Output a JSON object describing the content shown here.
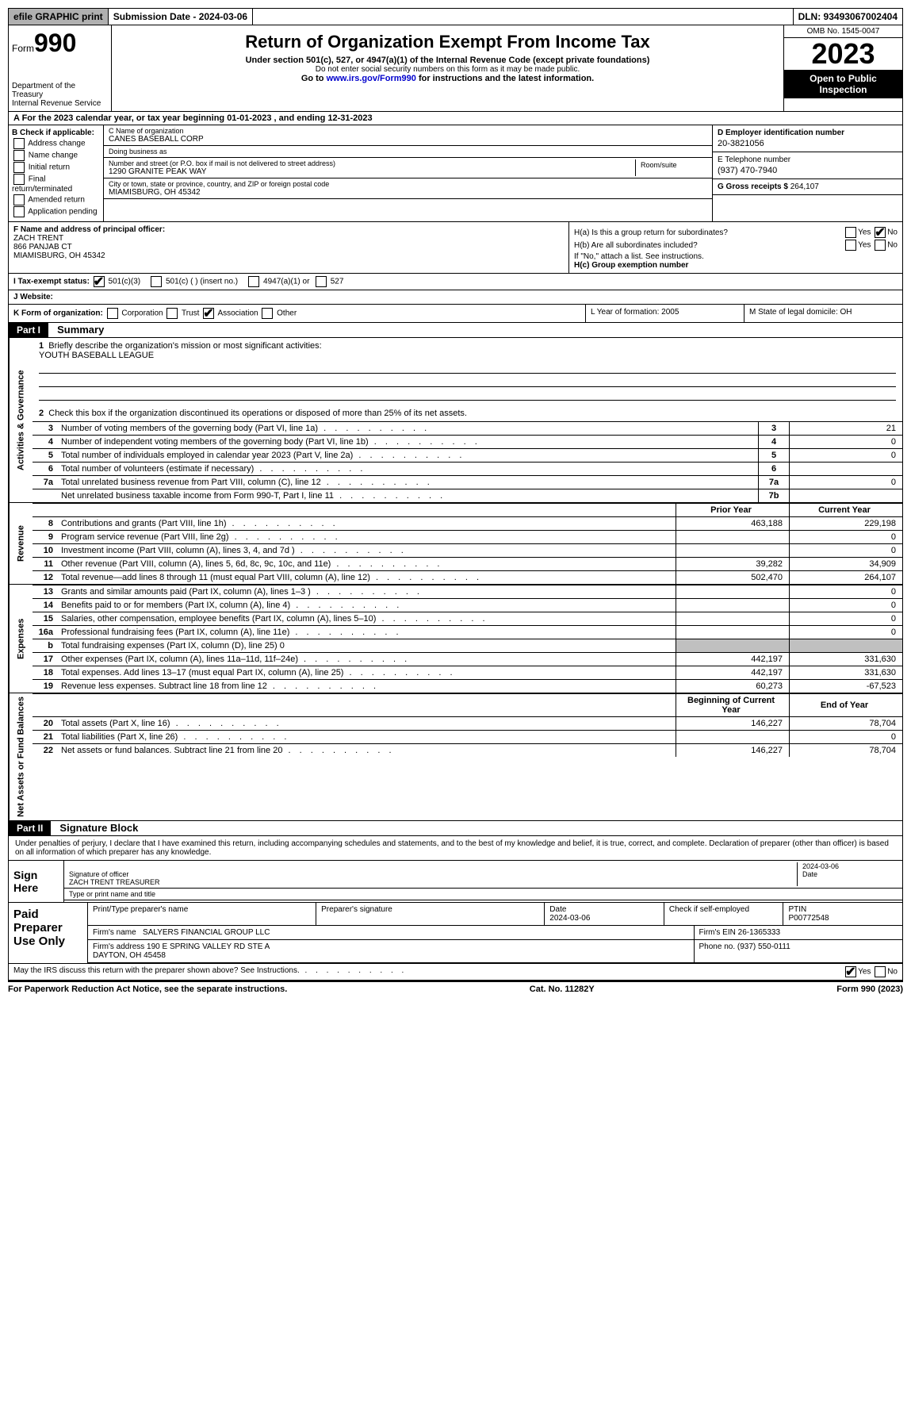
{
  "topbar": {
    "efile": "efile GRAPHIC print",
    "submission": "Submission Date - 2024-03-06",
    "dln": "DLN: 93493067002404"
  },
  "header": {
    "form_label": "Form",
    "form_num": "990",
    "dept": "Department of the Treasury\nInternal Revenue Service",
    "title": "Return of Organization Exempt From Income Tax",
    "sub": "Under section 501(c), 527, or 4947(a)(1) of the Internal Revenue Code (except private foundations)",
    "ssn": "Do not enter social security numbers on this form as it may be made public.",
    "goto_pre": "Go to ",
    "goto_link": "www.irs.gov/Form990",
    "goto_post": " for instructions and the latest information.",
    "omb": "OMB No. 1545-0047",
    "year": "2023",
    "open": "Open to Public Inspection"
  },
  "row_a": "A For the 2023 calendar year, or tax year beginning 01-01-2023    , and ending 12-31-2023",
  "col_b": {
    "lbl": "B Check if applicable:",
    "opts": [
      "Address change",
      "Name change",
      "Initial return",
      "Final return/terminated",
      "Amended return",
      "Application pending"
    ]
  },
  "col_c": {
    "name_lbl": "C Name of organization",
    "name": "CANES BASEBALL CORP",
    "dba_lbl": "Doing business as",
    "dba": "",
    "addr_lbl": "Number and street (or P.O. box if mail is not delivered to street address)",
    "addr": "1290 GRANITE PEAK WAY",
    "room_lbl": "Room/suite",
    "city_lbl": "City or town, state or province, country, and ZIP or foreign postal code",
    "city": "MIAMISBURG, OH  45342"
  },
  "col_d": {
    "ein_lbl": "D Employer identification number",
    "ein": "20-3821056",
    "tel_lbl": "E Telephone number",
    "tel": "(937) 470-7940",
    "gross_lbl": "G Gross receipts $",
    "gross": "264,107"
  },
  "col_f": {
    "lbl": "F  Name and address of principal officer:",
    "name": "ZACH TRENT",
    "addr1": "866 PANJAB CT",
    "addr2": "MIAMISBURG, OH  45342"
  },
  "col_h": {
    "ha_lbl": "H(a)  Is this a group return for subordinates?",
    "hb_lbl": "H(b)  Are all subordinates included?",
    "hb_note": "If \"No,\" attach a list. See instructions.",
    "hc_lbl": "H(c)  Group exemption number",
    "yes": "Yes",
    "no": "No"
  },
  "row_i": {
    "lbl": "I   Tax-exempt status:",
    "o1": "501(c)(3)",
    "o2": "501(c) (  ) (insert no.)",
    "o3": "4947(a)(1) or",
    "o4": "527"
  },
  "row_j": "J   Website:",
  "row_k": {
    "k_lbl": "K Form of organization:",
    "k_opts": [
      "Corporation",
      "Trust",
      "Association",
      "Other"
    ],
    "l": "L Year of formation: 2005",
    "m": "M State of legal domicile: OH"
  },
  "parts": {
    "p1": "Part I",
    "p1_title": "Summary",
    "p2": "Part II",
    "p2_title": "Signature Block"
  },
  "vlabels": {
    "gov": "Activities & Governance",
    "rev": "Revenue",
    "exp": "Expenses",
    "net": "Net Assets or Fund Balances"
  },
  "summary": {
    "l1_lbl": "Briefly describe the organization's mission or most significant activities:",
    "l1_val": "YOUTH BASEBALL LEAGUE",
    "l2": "Check this box          if the organization discontinued its operations or disposed of more than 25% of its net assets.",
    "lines_gov": [
      {
        "n": "3",
        "d": "Number of voting members of the governing body (Part VI, line 1a)",
        "box": "3",
        "v": "21"
      },
      {
        "n": "4",
        "d": "Number of independent voting members of the governing body (Part VI, line 1b)",
        "box": "4",
        "v": "0"
      },
      {
        "n": "5",
        "d": "Total number of individuals employed in calendar year 2023 (Part V, line 2a)",
        "box": "5",
        "v": "0"
      },
      {
        "n": "6",
        "d": "Total number of volunteers (estimate if necessary)",
        "box": "6",
        "v": ""
      },
      {
        "n": "7a",
        "d": "Total unrelated business revenue from Part VIII, column (C), line 12",
        "box": "7a",
        "v": "0"
      },
      {
        "n": "",
        "d": "Net unrelated business taxable income from Form 990-T, Part I, line 11",
        "box": "7b",
        "v": ""
      }
    ],
    "hdr_prior": "Prior Year",
    "hdr_curr": "Current Year",
    "lines_rev": [
      {
        "n": "8",
        "d": "Contributions and grants (Part VIII, line 1h)",
        "p": "463,188",
        "c": "229,198"
      },
      {
        "n": "9",
        "d": "Program service revenue (Part VIII, line 2g)",
        "p": "",
        "c": "0"
      },
      {
        "n": "10",
        "d": "Investment income (Part VIII, column (A), lines 3, 4, and 7d )",
        "p": "",
        "c": "0"
      },
      {
        "n": "11",
        "d": "Other revenue (Part VIII, column (A), lines 5, 6d, 8c, 9c, 10c, and 11e)",
        "p": "39,282",
        "c": "34,909"
      },
      {
        "n": "12",
        "d": "Total revenue—add lines 8 through 11 (must equal Part VIII, column (A), line 12)",
        "p": "502,470",
        "c": "264,107"
      }
    ],
    "lines_exp": [
      {
        "n": "13",
        "d": "Grants and similar amounts paid (Part IX, column (A), lines 1–3 )",
        "p": "",
        "c": "0"
      },
      {
        "n": "14",
        "d": "Benefits paid to or for members (Part IX, column (A), line 4)",
        "p": "",
        "c": "0"
      },
      {
        "n": "15",
        "d": "Salaries, other compensation, employee benefits (Part IX, column (A), lines 5–10)",
        "p": "",
        "c": "0"
      },
      {
        "n": "16a",
        "d": "Professional fundraising fees (Part IX, column (A), line 11e)",
        "p": "",
        "c": "0"
      },
      {
        "n": "b",
        "d": "Total fundraising expenses (Part IX, column (D), line 25) 0",
        "p": "shade",
        "c": "shade"
      },
      {
        "n": "17",
        "d": "Other expenses (Part IX, column (A), lines 11a–11d, 11f–24e)",
        "p": "442,197",
        "c": "331,630"
      },
      {
        "n": "18",
        "d": "Total expenses. Add lines 13–17 (must equal Part IX, column (A), line 25)",
        "p": "442,197",
        "c": "331,630"
      },
      {
        "n": "19",
        "d": "Revenue less expenses. Subtract line 18 from line 12",
        "p": "60,273",
        "c": "-67,523"
      }
    ],
    "hdr_begin": "Beginning of Current Year",
    "hdr_end": "End of Year",
    "lines_net": [
      {
        "n": "20",
        "d": "Total assets (Part X, line 16)",
        "p": "146,227",
        "c": "78,704"
      },
      {
        "n": "21",
        "d": "Total liabilities (Part X, line 26)",
        "p": "",
        "c": "0"
      },
      {
        "n": "22",
        "d": "Net assets or fund balances. Subtract line 21 from line 20",
        "p": "146,227",
        "c": "78,704"
      }
    ]
  },
  "sig": {
    "text": "Under penalties of perjury, I declare that I have examined this return, including accompanying schedules and statements, and to the best of my knowledge and belief, it is true, correct, and complete. Declaration of preparer (other than officer) is based on all information of which preparer has any knowledge.",
    "sign_here": "Sign Here",
    "sig_officer_lbl": "Signature of officer",
    "sig_officer": "ZACH TRENT TREASURER",
    "sig_type_lbl": "Type or print name and title",
    "sig_date_lbl": "Date",
    "sig_date": "2024-03-06",
    "paid": "Paid Preparer Use Only",
    "prep_name_lbl": "Print/Type preparer's name",
    "prep_sig_lbl": "Preparer's signature",
    "prep_date_lbl": "Date",
    "prep_date": "2024-03-06",
    "prep_check_lbl": "Check         if self-employed",
    "ptin_lbl": "PTIN",
    "ptin": "P00772548",
    "firm_name_lbl": "Firm's name",
    "firm_name": "SALYERS FINANCIAL GROUP LLC",
    "firm_ein_lbl": "Firm's EIN",
    "firm_ein": "26-1365333",
    "firm_addr_lbl": "Firm's address",
    "firm_addr": "190 E SPRING VALLEY RD STE A\nDAYTON, OH  45458",
    "phone_lbl": "Phone no.",
    "phone": "(937) 550-0111",
    "discuss": "May the IRS discuss this return with the preparer shown above? See Instructions.",
    "yes": "Yes",
    "no": "No"
  },
  "footer": {
    "pra": "For Paperwork Reduction Act Notice, see the separate instructions.",
    "cat": "Cat. No. 11282Y",
    "form": "Form 990 (2023)"
  }
}
